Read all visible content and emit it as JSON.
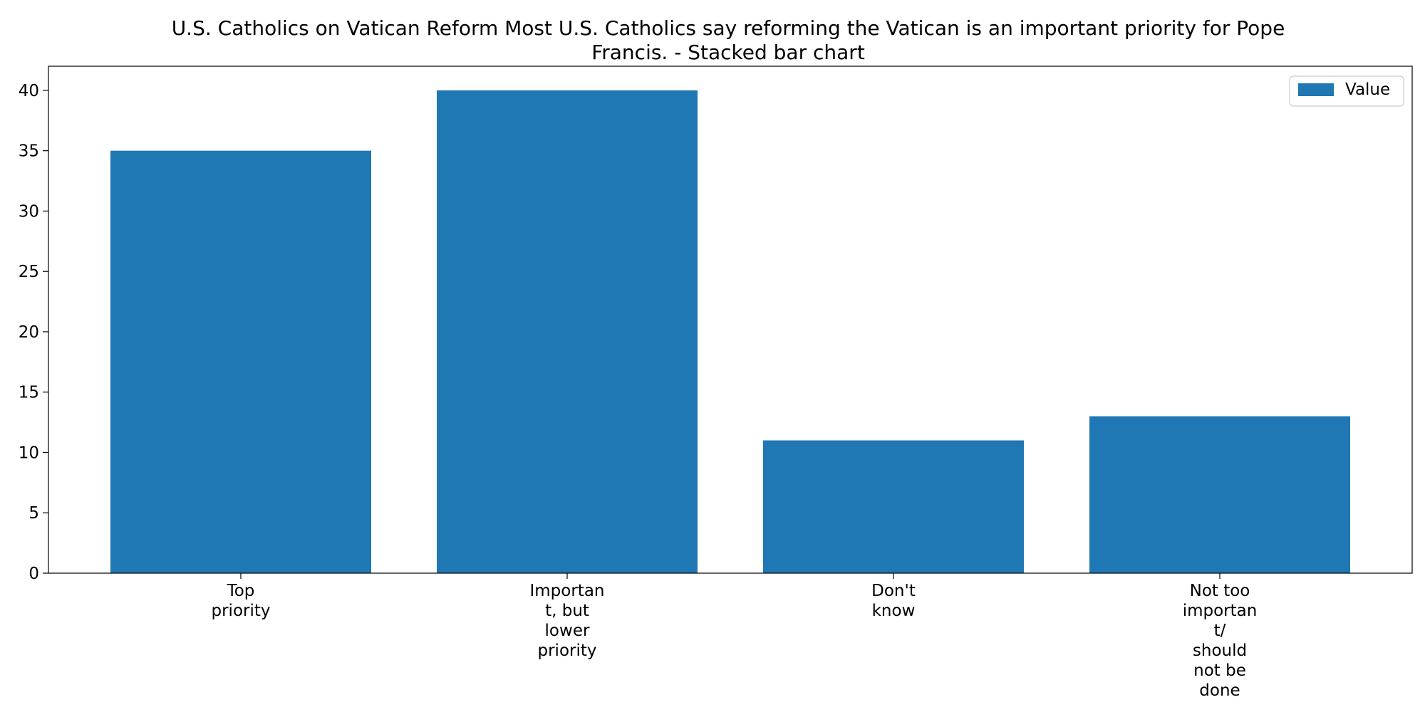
{
  "chart_data": {
    "type": "bar",
    "title_lines": [
      "U.S. Catholics on Vatican Reform Most U.S. Catholics say reforming the Vatican is an important priority for Pope",
      "Francis.  - Stacked bar chart"
    ],
    "category_lines": [
      [
        "Top",
        "priority"
      ],
      [
        "Importan",
        "t, but",
        "lower",
        "priority"
      ],
      [
        "Don't",
        "know"
      ],
      [
        "Not too",
        "importan",
        "t/",
        "should",
        "not be",
        "done"
      ]
    ],
    "categories": [
      "Top priority",
      "Important, but lower priority",
      "Don't know",
      "Not too important/ should not be done"
    ],
    "series": [
      {
        "name": "Value",
        "color": "#1f77b4",
        "values": [
          35,
          40,
          11,
          13
        ]
      }
    ],
    "ylim": [
      0,
      42
    ],
    "yticks": [
      0,
      5,
      10,
      15,
      20,
      25,
      30,
      35,
      40
    ],
    "xlabel": "",
    "ylabel": "",
    "legend_position": "top-right",
    "grid": false
  }
}
